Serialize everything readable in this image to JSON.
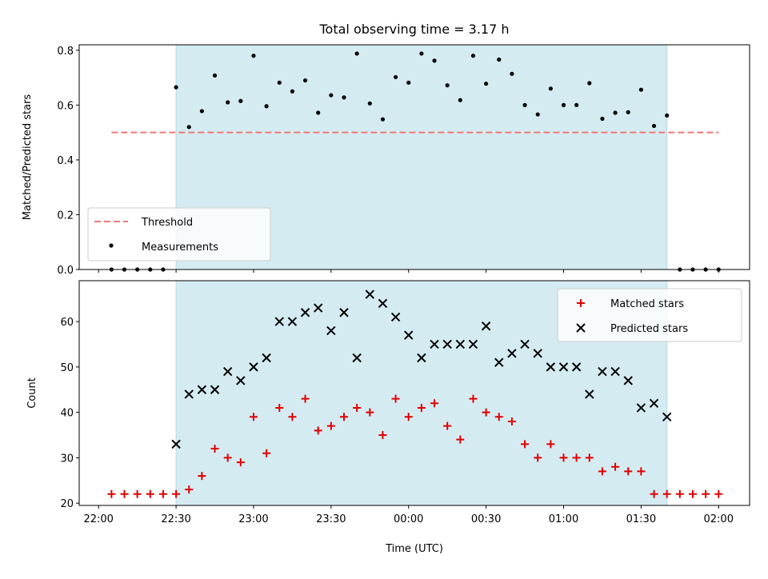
{
  "chart_data": {
    "type": "scatter",
    "title": "Total observing time = 3.17 h",
    "xlabel": "Time (UTC)",
    "x_tick_labels": [
      "22:00",
      "22:30",
      "23:00",
      "23:30",
      "00:00",
      "00:30",
      "01:00",
      "01:30",
      "02:00"
    ],
    "x_ticks_minutes": [
      0,
      30,
      60,
      90,
      120,
      150,
      180,
      210,
      240
    ],
    "x_range_minutes": [
      -7.5,
      252
    ],
    "observing_window_minutes": [
      30,
      220
    ],
    "window_color": "#d4ebf1",
    "panels": [
      {
        "ylabel": "Matched/Predicted stars",
        "ylim": [
          0,
          0.82
        ],
        "y_ticks": [
          0.0,
          0.2,
          0.4,
          0.6,
          0.8
        ],
        "y_tick_labels": [
          "0.0",
          "0.2",
          "0.4",
          "0.6",
          "0.8"
        ],
        "legend_position": "lower-left",
        "threshold": {
          "name": "Threshold",
          "value": 0.5,
          "x_from": 5,
          "x_to": 240,
          "color": "#f07878"
        },
        "series": [
          {
            "name": "Measurements",
            "marker": "dot",
            "color": "#000000",
            "x": [
              5,
              10,
              15,
              20,
              25,
              30,
              35,
              40,
              45,
              50,
              55,
              60,
              65,
              70,
              75,
              80,
              85,
              90,
              95,
              100,
              105,
              110,
              115,
              120,
              125,
              130,
              135,
              140,
              145,
              150,
              155,
              160,
              165,
              170,
              175,
              180,
              185,
              190,
              195,
              200,
              205,
              210,
              215,
              220,
              225,
              230,
              235,
              240
            ],
            "y": [
              0,
              0,
              0,
              0,
              0,
              0.665,
              0.52,
              0.578,
              0.708,
              0.61,
              0.615,
              0.78,
              0.596,
              0.682,
              0.65,
              0.69,
              0.572,
              0.636,
              0.628,
              0.788,
              0.606,
              0.548,
              0.702,
              0.682,
              0.788,
              0.762,
              0.672,
              0.618,
              0.78,
              0.678,
              0.766,
              0.714,
              0.6,
              0.566,
              0.66,
              0.6,
              0.6,
              0.68,
              0.55,
              0.572,
              0.574,
              0.656,
              0.524,
              0.562,
              0,
              0,
              0,
              0
            ]
          }
        ]
      },
      {
        "ylabel": "Count",
        "ylim": [
          19.5,
          69
        ],
        "y_ticks": [
          20,
          30,
          40,
          50,
          60
        ],
        "y_tick_labels": [
          "20",
          "30",
          "40",
          "50",
          "60"
        ],
        "legend_position": "upper-right",
        "series": [
          {
            "name": "Matched stars",
            "marker": "plus",
            "color": "#e00000",
            "x": [
              5,
              10,
              15,
              20,
              25,
              30,
              35,
              40,
              45,
              50,
              55,
              60,
              65,
              70,
              75,
              80,
              85,
              90,
              95,
              100,
              105,
              110,
              115,
              120,
              125,
              130,
              135,
              140,
              145,
              150,
              155,
              160,
              165,
              170,
              175,
              180,
              185,
              190,
              195,
              200,
              205,
              210,
              215,
              220,
              225,
              230,
              235,
              240
            ],
            "y": [
              22,
              22,
              22,
              22,
              22,
              22,
              23,
              26,
              32,
              30,
              29,
              39,
              31,
              41,
              39,
              43,
              36,
              37,
              39,
              41,
              40,
              35,
              43,
              39,
              41,
              42,
              37,
              34,
              43,
              40,
              39,
              38,
              33,
              30,
              33,
              30,
              30,
              30,
              27,
              28,
              27,
              27,
              22,
              22,
              22,
              22,
              22,
              22
            ]
          },
          {
            "name": "Predicted stars",
            "marker": "x",
            "color": "#000000",
            "x": [
              30,
              35,
              40,
              45,
              50,
              55,
              60,
              65,
              70,
              75,
              80,
              85,
              90,
              95,
              100,
              105,
              110,
              115,
              120,
              125,
              130,
              135,
              140,
              145,
              150,
              155,
              160,
              165,
              170,
              175,
              180,
              185,
              190,
              195,
              200,
              205,
              210,
              215,
              220
            ],
            "y": [
              33,
              44,
              45,
              45,
              49,
              47,
              50,
              52,
              60,
              60,
              62,
              63,
              58,
              62,
              52,
              66,
              64,
              61,
              57,
              52,
              55,
              55,
              55,
              55,
              59,
              51,
              53,
              55,
              53,
              50,
              50,
              50,
              44,
              49,
              49,
              47,
              41,
              42,
              39
            ]
          }
        ]
      }
    ]
  }
}
